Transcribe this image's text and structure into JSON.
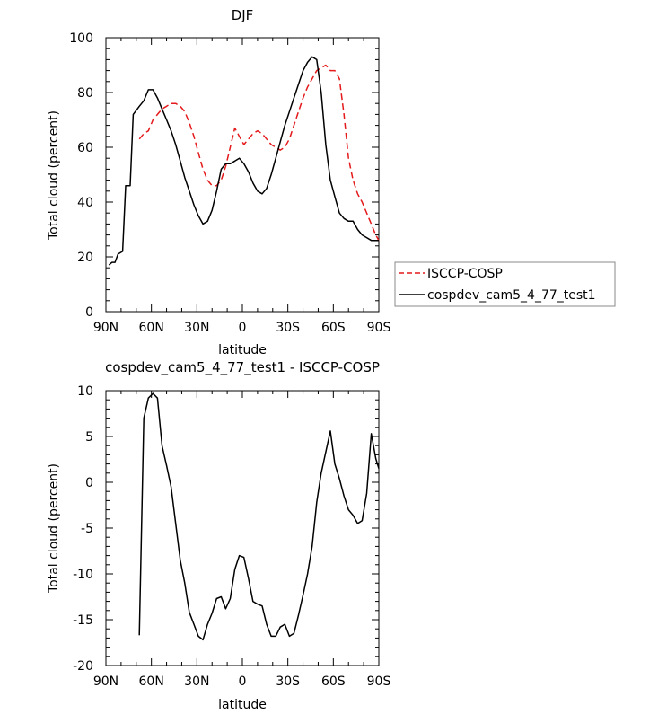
{
  "chart_data": [
    {
      "type": "line",
      "title": "DJF",
      "xlabel": "latitude",
      "ylabel": "Total cloud (percent)",
      "xlim": [
        -90,
        90
      ],
      "ylim": [
        0,
        100
      ],
      "x_ticks": [
        -90,
        -60,
        -30,
        0,
        30,
        60,
        90
      ],
      "x_tick_labels": [
        "90N",
        "60N",
        "30N",
        "0",
        "30S",
        "60S",
        "90S"
      ],
      "y_ticks": [
        0,
        20,
        40,
        60,
        80,
        100
      ],
      "y_tick_labels": [
        "0",
        "20",
        "40",
        "60",
        "80",
        "100"
      ],
      "legend_position": "right",
      "series": [
        {
          "name": "ISCCP-COSP",
          "style": "dashed",
          "color": "#e41a1c",
          "x": [
            -68,
            -65,
            -62,
            -59,
            -56,
            -53,
            -50,
            -47,
            -44,
            -41,
            -38,
            -35,
            -32,
            -29,
            -26,
            -23,
            -20,
            -17,
            -14,
            -11,
            -8,
            -5,
            -2,
            1,
            4,
            7,
            10,
            13,
            16,
            19,
            22,
            25,
            28,
            31,
            34,
            37,
            40,
            43,
            46,
            49,
            52,
            55,
            58,
            61,
            64,
            67,
            70,
            73,
            76,
            79,
            82,
            85,
            88,
            90
          ],
          "y": [
            63,
            65,
            66,
            70,
            72,
            74,
            75,
            76,
            76,
            75,
            73,
            69,
            64,
            58,
            52,
            48,
            46,
            46,
            48,
            53,
            60,
            67,
            64,
            61,
            63,
            65,
            66,
            65,
            63,
            61,
            60,
            59,
            60,
            63,
            68,
            73,
            78,
            82,
            85,
            88,
            89,
            90,
            88,
            88,
            85,
            72,
            56,
            48,
            43,
            40,
            36,
            32,
            28,
            26
          ]
        },
        {
          "name": "cospdev_cam5_4_77_test1",
          "style": "solid",
          "color": "#000000",
          "x": [
            -88,
            -86,
            -84,
            -82,
            -79,
            -77,
            -74,
            -72,
            -68,
            -65,
            -62,
            -59,
            -56,
            -53,
            -50,
            -47,
            -44,
            -41,
            -38,
            -35,
            -32,
            -29,
            -26,
            -23,
            -20,
            -17,
            -14,
            -11,
            -8,
            -5,
            -2,
            1,
            4,
            7,
            10,
            13,
            16,
            19,
            22,
            25,
            28,
            31,
            34,
            37,
            40,
            43,
            46,
            49,
            52,
            55,
            58,
            61,
            64,
            67,
            70,
            73,
            76,
            79,
            82,
            85,
            88,
            90
          ],
          "y": [
            17,
            18,
            18,
            21,
            22,
            46,
            46,
            72,
            75,
            77,
            81,
            81,
            78,
            74,
            70,
            66,
            61,
            55,
            49,
            44,
            39,
            35,
            32,
            33,
            37,
            44,
            52,
            54,
            54,
            55,
            56,
            54,
            51,
            47,
            44,
            43,
            45,
            50,
            56,
            62,
            68,
            73,
            78,
            83,
            88,
            91,
            93,
            92,
            80,
            61,
            48,
            42,
            36,
            34,
            33,
            33,
            30,
            28,
            27,
            26,
            26,
            26
          ]
        }
      ]
    },
    {
      "type": "line",
      "title": "cospdev_cam5_4_77_test1 - ISCCP-COSP",
      "xlabel": "latitude",
      "ylabel": "Total cloud (percent)",
      "xlim": [
        -90,
        90
      ],
      "ylim": [
        -20,
        10
      ],
      "x_ticks": [
        -90,
        -60,
        -30,
        0,
        30,
        60,
        90
      ],
      "x_tick_labels": [
        "90N",
        "60N",
        "30N",
        "0",
        "30S",
        "60S",
        "90S"
      ],
      "y_ticks": [
        -20,
        -15,
        -10,
        -5,
        0,
        5,
        10
      ],
      "y_tick_labels": [
        "-20",
        "-15",
        "-10",
        "-5",
        "0",
        "5",
        "10"
      ],
      "series": [
        {
          "style": "solid",
          "color": "#000000",
          "x": [
            -68,
            -65,
            -62,
            -59,
            -56,
            -53,
            -50,
            -47,
            -44,
            -41,
            -38,
            -35,
            -32,
            -29,
            -26,
            -23,
            -20,
            -17,
            -14,
            -11,
            -8,
            -5,
            -2,
            1,
            4,
            7,
            10,
            13,
            16,
            19,
            22,
            25,
            28,
            31,
            34,
            37,
            40,
            43,
            46,
            49,
            52,
            55,
            58,
            61,
            64,
            67,
            70,
            73,
            76,
            79,
            82,
            85,
            88,
            90
          ],
          "y": [
            -16.7,
            7,
            9.2,
            9.7,
            9.2,
            4,
            1.8,
            -0.5,
            -4.5,
            -8.5,
            -11,
            -14.2,
            -15.5,
            -16.8,
            -17.2,
            -15.5,
            -14.3,
            -12.7,
            -12.5,
            -13.8,
            -12.7,
            -9.5,
            -8,
            -8.2,
            -10.5,
            -13,
            -13.3,
            -13.5,
            -15.5,
            -16.8,
            -16.8,
            -15.8,
            -15.5,
            -16.8,
            -16.5,
            -14.5,
            -12.3,
            -10,
            -7,
            -2.2,
            1,
            3.3,
            5.6,
            2,
            0.4,
            -1.5,
            -3,
            -3.6,
            -4.5,
            -4.2,
            -1.2,
            5.3,
            2.6,
            1.5
          ]
        }
      ]
    }
  ],
  "colors": {
    "frame": "#000000",
    "legend_frame": "#888888"
  }
}
